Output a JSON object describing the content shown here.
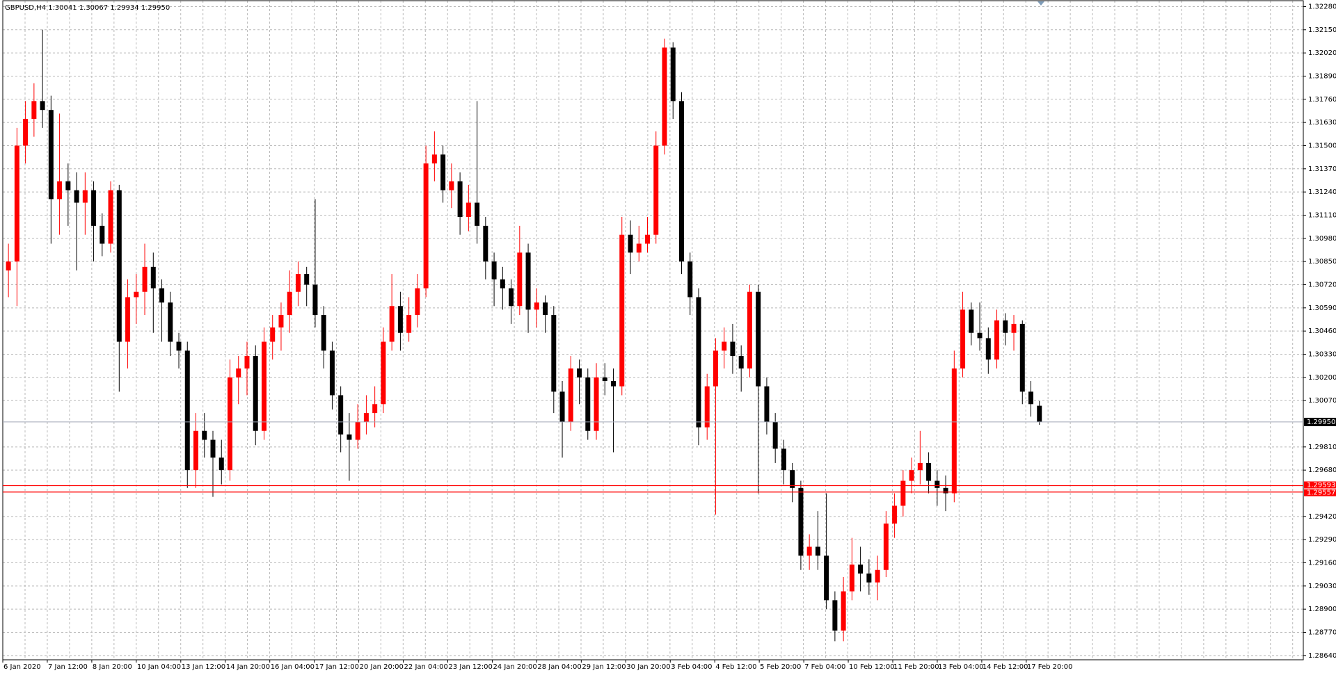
{
  "chart_data": {
    "type": "candlestick",
    "title": "GBPUSD,H4  1.30041 1.30067 1.29934 1.29950",
    "up_color": "#ff0000",
    "down_color": "#000000",
    "grid": true,
    "ylim": [
      1.28616,
      1.32313
    ],
    "yticks": [
      {
        "value": 1.3228,
        "label": "1.32280"
      },
      {
        "value": 1.3215,
        "label": "1.32150"
      },
      {
        "value": 1.3202,
        "label": "1.32020"
      },
      {
        "value": 1.3189,
        "label": "1.31890"
      },
      {
        "value": 1.3176,
        "label": "1.31760"
      },
      {
        "value": 1.3163,
        "label": "1.31630"
      },
      {
        "value": 1.315,
        "label": "1.31500"
      },
      {
        "value": 1.3137,
        "label": "1.31370"
      },
      {
        "value": 1.3124,
        "label": "1.31240"
      },
      {
        "value": 1.3111,
        "label": "1.31110"
      },
      {
        "value": 1.3098,
        "label": "1.30980"
      },
      {
        "value": 1.3085,
        "label": "1.30850"
      },
      {
        "value": 1.3072,
        "label": "1.30720"
      },
      {
        "value": 1.3059,
        "label": "1.30590"
      },
      {
        "value": 1.3046,
        "label": "1.30460"
      },
      {
        "value": 1.3033,
        "label": "1.30330"
      },
      {
        "value": 1.302,
        "label": "1.30200"
      },
      {
        "value": 1.3007,
        "label": "1.30070"
      },
      {
        "value": 1.2981,
        "label": "1.29810"
      },
      {
        "value": 1.2968,
        "label": "1.29680"
      },
      {
        "value": 1.2942,
        "label": "1.29420"
      },
      {
        "value": 1.2929,
        "label": "1.29290"
      },
      {
        "value": 1.2916,
        "label": "1.29160"
      },
      {
        "value": 1.2903,
        "label": "1.29030"
      },
      {
        "value": 1.289,
        "label": "1.28900"
      },
      {
        "value": 1.2877,
        "label": "1.28770"
      },
      {
        "value": 1.2864,
        "label": "1.28640"
      }
    ],
    "current_price": {
      "value": 1.2995,
      "label": "1.29950"
    },
    "levels": [
      1.29593,
      1.29557
    ],
    "level_color": "#ff0000",
    "x_labels": [
      "6 Jan 2020",
      "7 Jan 12:00",
      "8 Jan 20:00",
      "10 Jan 04:00",
      "13 Jan 12:00",
      "14 Jan 20:00",
      "16 Jan 04:00",
      "17 Jan 12:00",
      "20 Jan 20:00",
      "22 Jan 04:00",
      "23 Jan 12:00",
      "24 Jan 20:00",
      "28 Jan 04:00",
      "29 Jan 12:00",
      "30 Jan 20:00",
      "3 Feb 04:00",
      "4 Feb 12:00",
      "5 Feb 20:00",
      "7 Feb 04:00",
      "10 Feb 12:00",
      "11 Feb 20:00",
      "13 Feb 04:00",
      "14 Feb 12:00",
      "17 Feb 20:00"
    ],
    "ohlc": [
      [
        1.308,
        1.3095,
        1.3065,
        1.3085
      ],
      [
        1.3085,
        1.316,
        1.306,
        1.315
      ],
      [
        1.315,
        1.3175,
        1.314,
        1.3165
      ],
      [
        1.3165,
        1.3185,
        1.3155,
        1.3175
      ],
      [
        1.3175,
        1.3215,
        1.316,
        1.317
      ],
      [
        1.317,
        1.3178,
        1.3095,
        1.312
      ],
      [
        1.312,
        1.3168,
        1.31,
        1.313
      ],
      [
        1.313,
        1.314,
        1.3105,
        1.3125
      ],
      [
        1.3125,
        1.3135,
        1.308,
        1.3118
      ],
      [
        1.3118,
        1.3135,
        1.31,
        1.3125
      ],
      [
        1.3125,
        1.313,
        1.3085,
        1.3105
      ],
      [
        1.3105,
        1.3112,
        1.3088,
        1.3095
      ],
      [
        1.3095,
        1.313,
        1.309,
        1.3125
      ],
      [
        1.3125,
        1.3128,
        1.3012,
        1.304
      ],
      [
        1.304,
        1.3075,
        1.3025,
        1.3065
      ],
      [
        1.3065,
        1.3078,
        1.305,
        1.3068
      ],
      [
        1.3068,
        1.3095,
        1.3055,
        1.3082
      ],
      [
        1.3082,
        1.309,
        1.3045,
        1.307
      ],
      [
        1.307,
        1.3075,
        1.304,
        1.3062
      ],
      [
        1.3062,
        1.3068,
        1.3032,
        1.304
      ],
      [
        1.304,
        1.3045,
        1.3025,
        1.3035
      ],
      [
        1.3035,
        1.304,
        1.2958,
        1.2968
      ],
      [
        1.2968,
        1.3,
        1.2958,
        1.299
      ],
      [
        1.299,
        1.3,
        1.2975,
        1.2985
      ],
      [
        1.2985,
        1.299,
        1.2953,
        1.2975
      ],
      [
        1.2975,
        1.2985,
        1.296,
        1.2968
      ],
      [
        1.2968,
        1.303,
        1.2962,
        1.302
      ],
      [
        1.302,
        1.3032,
        1.3005,
        1.3025
      ],
      [
        1.3025,
        1.304,
        1.301,
        1.3032
      ],
      [
        1.3032,
        1.3038,
        1.2982,
        1.299
      ],
      [
        1.299,
        1.3048,
        1.2985,
        1.304
      ],
      [
        1.304,
        1.3055,
        1.303,
        1.3048
      ],
      [
        1.3048,
        1.3062,
        1.3035,
        1.3055
      ],
      [
        1.3055,
        1.308,
        1.3045,
        1.3068
      ],
      [
        1.3068,
        1.3085,
        1.306,
        1.3078
      ],
      [
        1.3078,
        1.3082,
        1.306,
        1.3072
      ],
      [
        1.3072,
        1.312,
        1.3048,
        1.3055
      ],
      [
        1.3055,
        1.306,
        1.3025,
        1.3035
      ],
      [
        1.3035,
        1.304,
        1.3002,
        1.301
      ],
      [
        1.301,
        1.3015,
        1.2978,
        1.2988
      ],
      [
        1.2988,
        1.3,
        1.2962,
        1.2985
      ],
      [
        1.2985,
        1.3005,
        1.298,
        1.2995
      ],
      [
        1.2995,
        1.301,
        1.2988,
        1.3
      ],
      [
        1.3,
        1.3015,
        1.2992,
        1.3005
      ],
      [
        1.3005,
        1.3048,
        1.3,
        1.304
      ],
      [
        1.304,
        1.3078,
        1.3035,
        1.306
      ],
      [
        1.306,
        1.3068,
        1.3035,
        1.3045
      ],
      [
        1.3045,
        1.3065,
        1.304,
        1.3055
      ],
      [
        1.3055,
        1.3078,
        1.3048,
        1.307
      ],
      [
        1.307,
        1.315,
        1.3065,
        1.314
      ],
      [
        1.314,
        1.3158,
        1.313,
        1.3145
      ],
      [
        1.3145,
        1.315,
        1.3118,
        1.3125
      ],
      [
        1.3125,
        1.314,
        1.3115,
        1.313
      ],
      [
        1.313,
        1.3135,
        1.31,
        1.311
      ],
      [
        1.311,
        1.3128,
        1.3102,
        1.3118
      ],
      [
        1.3118,
        1.3175,
        1.3095,
        1.3105
      ],
      [
        1.3105,
        1.311,
        1.3075,
        1.3085
      ],
      [
        1.3085,
        1.309,
        1.306,
        1.3075
      ],
      [
        1.3075,
        1.3082,
        1.3058,
        1.307
      ],
      [
        1.307,
        1.3075,
        1.305,
        1.306
      ],
      [
        1.306,
        1.3105,
        1.3055,
        1.309
      ],
      [
        1.309,
        1.3095,
        1.3045,
        1.3058
      ],
      [
        1.3058,
        1.307,
        1.3048,
        1.3062
      ],
      [
        1.3062,
        1.3066,
        1.3045,
        1.3055
      ],
      [
        1.3055,
        1.306,
        1.3,
        1.3012
      ],
      [
        1.3012,
        1.3018,
        1.2975,
        1.2995
      ],
      [
        1.2995,
        1.3032,
        1.299,
        1.3025
      ],
      [
        1.3025,
        1.303,
        1.3005,
        1.302
      ],
      [
        1.302,
        1.3025,
        1.2985,
        1.299
      ],
      [
        1.299,
        1.3028,
        1.2985,
        1.302
      ],
      [
        1.302,
        1.3028,
        1.301,
        1.3018
      ],
      [
        1.3018,
        1.3025,
        1.2978,
        1.3015
      ],
      [
        1.3015,
        1.311,
        1.301,
        1.31
      ],
      [
        1.31,
        1.3108,
        1.3078,
        1.309
      ],
      [
        1.309,
        1.3105,
        1.3085,
        1.3095
      ],
      [
        1.3095,
        1.311,
        1.309,
        1.31
      ],
      [
        1.31,
        1.3158,
        1.3095,
        1.315
      ],
      [
        1.315,
        1.321,
        1.3145,
        1.3205
      ],
      [
        1.3205,
        1.3208,
        1.3165,
        1.3175
      ],
      [
        1.3175,
        1.318,
        1.3078,
        1.3085
      ],
      [
        1.3085,
        1.309,
        1.3055,
        1.3065
      ],
      [
        1.3065,
        1.307,
        1.2982,
        1.2992
      ],
      [
        1.2992,
        1.3022,
        1.2985,
        1.3015
      ],
      [
        1.3015,
        1.3042,
        1.2943,
        1.3035
      ],
      [
        1.3035,
        1.3048,
        1.3025,
        1.304
      ],
      [
        1.304,
        1.305,
        1.3022,
        1.3032
      ],
      [
        1.3032,
        1.3038,
        1.3012,
        1.3025
      ],
      [
        1.3025,
        1.3072,
        1.302,
        1.3068
      ],
      [
        1.3068,
        1.3072,
        1.2955,
        1.3015
      ],
      [
        1.3015,
        1.302,
        1.2988,
        1.2995
      ],
      [
        1.2995,
        1.3,
        1.2972,
        1.298
      ],
      [
        1.298,
        1.2985,
        1.296,
        1.2968
      ],
      [
        1.2968,
        1.2972,
        1.295,
        1.2958
      ],
      [
        1.2958,
        1.2962,
        1.2912,
        1.292
      ],
      [
        1.292,
        1.2932,
        1.2912,
        1.2925
      ],
      [
        1.2925,
        1.2945,
        1.2912,
        1.292
      ],
      [
        1.292,
        1.2955,
        1.289,
        1.2895
      ],
      [
        1.2895,
        1.29,
        1.2872,
        1.2878
      ],
      [
        1.2878,
        1.2908,
        1.2872,
        1.29
      ],
      [
        1.29,
        1.293,
        1.2895,
        1.2915
      ],
      [
        1.2915,
        1.2925,
        1.29,
        1.291
      ],
      [
        1.291,
        1.2918,
        1.2898,
        1.2905
      ],
      [
        1.2905,
        1.292,
        1.2895,
        1.2912
      ],
      [
        1.2912,
        1.2945,
        1.2908,
        1.2938
      ],
      [
        1.2938,
        1.2955,
        1.293,
        1.2948
      ],
      [
        1.2948,
        1.2968,
        1.2942,
        1.2962
      ],
      [
        1.2962,
        1.2975,
        1.2955,
        1.2968
      ],
      [
        1.2968,
        1.299,
        1.296,
        1.2972
      ],
      [
        1.2972,
        1.2978,
        1.2955,
        1.2962
      ],
      [
        1.2962,
        1.2968,
        1.2948,
        1.2958
      ],
      [
        1.2958,
        1.2965,
        1.2945,
        1.2955
      ],
      [
        1.2955,
        1.3035,
        1.295,
        1.3025
      ],
      [
        1.3025,
        1.3068,
        1.302,
        1.3058
      ],
      [
        1.3058,
        1.3062,
        1.3038,
        1.3045
      ],
      [
        1.3045,
        1.3062,
        1.3035,
        1.3042
      ],
      [
        1.3042,
        1.3048,
        1.3022,
        1.303
      ],
      [
        1.303,
        1.3058,
        1.3025,
        1.3052
      ],
      [
        1.3052,
        1.3056,
        1.3038,
        1.3045
      ],
      [
        1.3045,
        1.3055,
        1.3035,
        1.305
      ],
      [
        1.305,
        1.3052,
        1.3005,
        1.3012
      ],
      [
        1.3012,
        1.3018,
        1.2998,
        1.3005
      ],
      [
        1.30041,
        1.30067,
        1.29934,
        1.2995
      ]
    ]
  }
}
